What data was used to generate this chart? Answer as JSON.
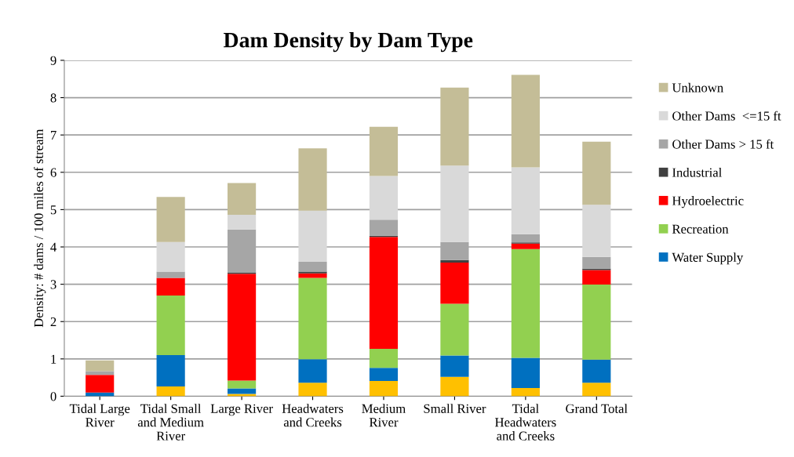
{
  "chart_data": {
    "type": "bar",
    "stacked": true,
    "title": "Dam Density by Dam Type",
    "ylabel": "Density: # dams / 100 miles of stream",
    "categories": [
      "Tidal Large\nRiver",
      "Tidal Small\nand Medium\nRiver",
      "Large River",
      "Headwaters\nand Creeks",
      "Medium\nRiver",
      "Small River",
      "Tidal\nHeadwaters\nand Creeks",
      "Grand Total"
    ],
    "series": [
      {
        "color": "#ffc000",
        "values": [
          0,
          0.26,
          0.06,
          0.36,
          0.41,
          0.52,
          0.22,
          0.36
        ]
      },
      {
        "name": "Water Supply",
        "color": "#0070c0",
        "values": [
          0.1,
          0.84,
          0.15,
          0.63,
          0.35,
          0.57,
          0.81,
          0.62
        ]
      },
      {
        "name": "Recreation",
        "color": "#92d050",
        "values": [
          0,
          1.6,
          0.21,
          2.18,
          0.51,
          1.39,
          2.91,
          2.01
        ]
      },
      {
        "name": "Hydroelectric",
        "color": "#ff0000",
        "values": [
          0.47,
          0.47,
          2.86,
          0.12,
          3.0,
          1.1,
          0.15,
          0.39
        ]
      },
      {
        "name": "Industrial",
        "color": "#404040",
        "values": [
          0,
          0,
          0.04,
          0.05,
          0.03,
          0.07,
          0.03,
          0.04
        ]
      },
      {
        "name": "Other Dams > 15 ft",
        "color": "#a6a6a6",
        "values": [
          0.1,
          0.17,
          1.15,
          0.26,
          0.43,
          0.48,
          0.22,
          0.31
        ]
      },
      {
        "name": "Other Dams  <=15 ft",
        "color": "#d9d9d9",
        "values": [
          0,
          0.79,
          0.39,
          1.37,
          1.17,
          2.05,
          1.79,
          1.4
        ]
      },
      {
        "name": "Unknown",
        "color": "#c4bd97",
        "values": [
          0.29,
          1.21,
          0.85,
          1.67,
          1.32,
          2.09,
          2.48,
          1.69
        ]
      }
    ],
    "ylim": [
      0,
      9
    ],
    "yticks": [
      0,
      1,
      2,
      3,
      4,
      5,
      6,
      7,
      8,
      9
    ],
    "grid": "y",
    "legend": "right"
  }
}
